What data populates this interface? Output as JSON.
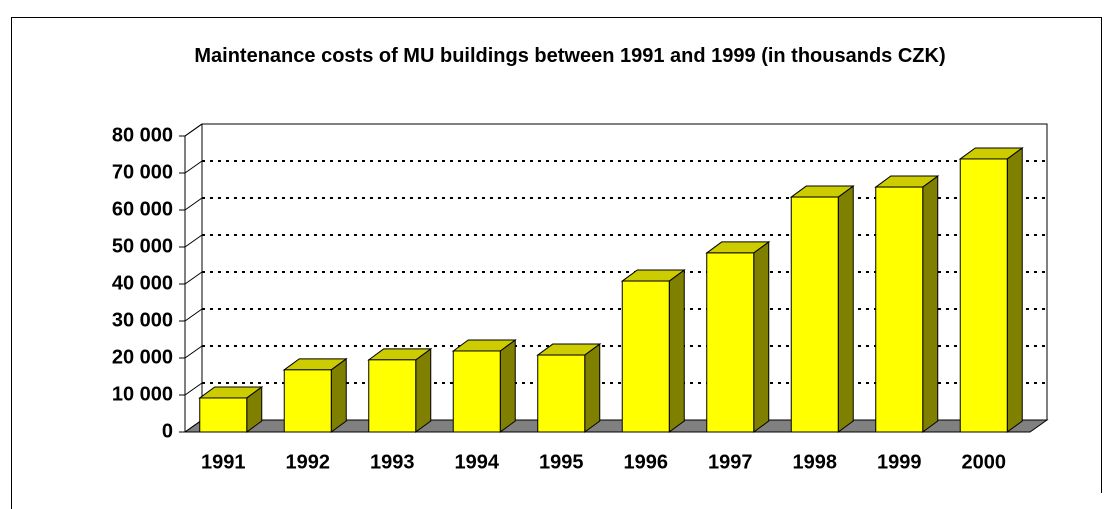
{
  "chart_data": {
    "type": "bar3d",
    "title": "Maintenance costs of MU buildings between 1991 and 1999 (in thousands CZK)",
    "categories": [
      "1991",
      "1992",
      "1993",
      "1994",
      "1995",
      "1996",
      "1997",
      "1998",
      "1999",
      "2000"
    ],
    "values": [
      9200,
      16800,
      19500,
      21900,
      20800,
      40800,
      48400,
      63500,
      66200,
      73800
    ],
    "color": "#ffff00",
    "side_color": "#808000",
    "top_color": "#cccc00",
    "floor_color": "#808080",
    "ylim": [
      0,
      80000
    ],
    "yticks": [
      0,
      {
        "value": 10000,
        "label": "10 000"
      },
      {
        "value": 20000,
        "label": "20 000"
      },
      {
        "value": 30000,
        "label": "30 000"
      },
      {
        "value": 40000,
        "label": "40 000"
      },
      {
        "value": 50000,
        "label": "50 000"
      },
      {
        "value": 60000,
        "label": "60 000"
      },
      {
        "value": 70000,
        "label": "70 000"
      },
      {
        "value": 80000,
        "label": "80 000"
      }
    ],
    "grid": true
  }
}
